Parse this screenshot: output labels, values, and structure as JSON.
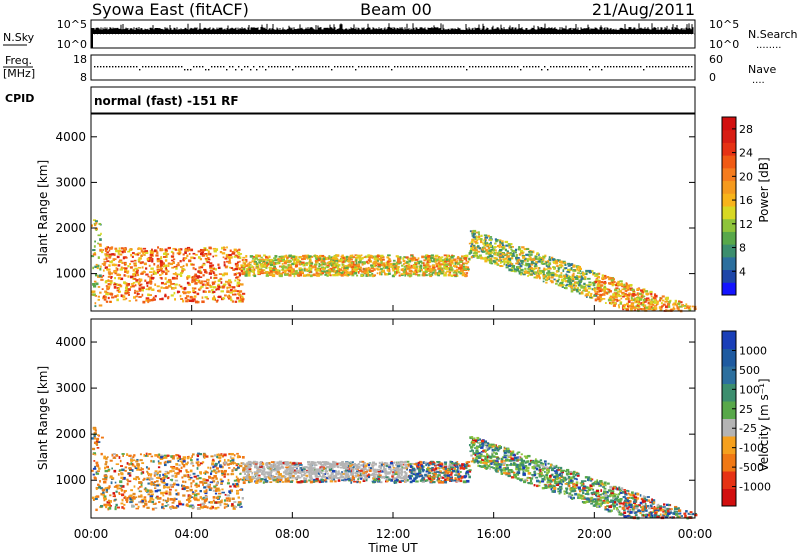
{
  "header": {
    "left": "Syowa East (fitACF)",
    "center": "Beam 00",
    "right": "21/Aug/2011"
  },
  "top_panels": {
    "nsky": {
      "label": "N.Sky",
      "y_ticks": [
        "10^5",
        "10^0"
      ],
      "right_ticks": [
        "10^5",
        "10^0"
      ],
      "right_label": "N.Search",
      "right_label_marker": "........"
    },
    "freq": {
      "label_line1": "Freq.",
      "label_line2": "[MHz]",
      "y_ticks": [
        "18",
        "8"
      ],
      "right_ticks": [
        "60",
        "0"
      ],
      "right_label": "Nave",
      "right_label_marker": "...."
    },
    "cpid": {
      "label": "CPID",
      "text": "normal (fast) -151 RF"
    }
  },
  "chart_data": [
    {
      "type": "heatmap",
      "name": "power",
      "title": "",
      "xlabel": "",
      "ylabel": "Slant Range [km]",
      "ylim": [
        180,
        4500
      ],
      "xlim": [
        "00:00",
        "24:00"
      ],
      "y_ticks": [
        1000,
        2000,
        3000,
        4000
      ],
      "colorbar": {
        "label": "Power [dB]",
        "ticks": [
          "4",
          "8",
          "12",
          "16",
          "20",
          "24",
          "28"
        ],
        "range": [
          0,
          30
        ],
        "colors": [
          "#1414ff",
          "#1e46a8",
          "#2c6f9e",
          "#3c8e6e",
          "#58a84a",
          "#8ec43a",
          "#d8d823",
          "#f8b41a",
          "#f59a1e",
          "#f57c1e",
          "#f05a14",
          "#e63214",
          "#d81e14",
          "#d20f0f"
        ]
      },
      "note_regions": [
        {
          "t0": 0.0,
          "t1": 0.4,
          "r0": 300,
          "r1": 2200,
          "mean_db": 14
        },
        {
          "t0": 0.4,
          "t1": 6.0,
          "r0": 400,
          "r1": 1600,
          "mean_db": 20
        },
        {
          "t0": 6.0,
          "t1": 15.0,
          "r0": 1100,
          "r1": 1550,
          "mean_db": 16
        },
        {
          "t0": 15.0,
          "t1": 20.0,
          "r0": 700,
          "r1": 1800,
          "mean_db": 12
        },
        {
          "t0": 20.0,
          "t1": 24.0,
          "r0": 300,
          "r1": 900,
          "mean_db": 18
        }
      ]
    },
    {
      "type": "heatmap",
      "name": "velocity",
      "title": "",
      "xlabel": "Time UT",
      "ylabel": "Slant Range [km]",
      "ylim": [
        180,
        4500
      ],
      "xlim": [
        "00:00",
        "24:00"
      ],
      "x_ticks": [
        "00:00",
        "04:00",
        "08:00",
        "12:00",
        "16:00",
        "20:00",
        "00:00"
      ],
      "y_ticks": [
        1000,
        2000,
        3000,
        4000
      ],
      "colorbar": {
        "label": "Velocity [m s⁻¹]",
        "ticks": [
          "1000",
          "500",
          "100",
          "25",
          "-25",
          "-100",
          "-500",
          "-1000"
        ],
        "colors": [
          "#1a3fb8",
          "#1e5aa0",
          "#2c6f9e",
          "#3c8e6e",
          "#58a84a",
          "#b4b4b4",
          "#f5a01e",
          "#f07814",
          "#e63214",
          "#d20f0f"
        ]
      }
    }
  ]
}
